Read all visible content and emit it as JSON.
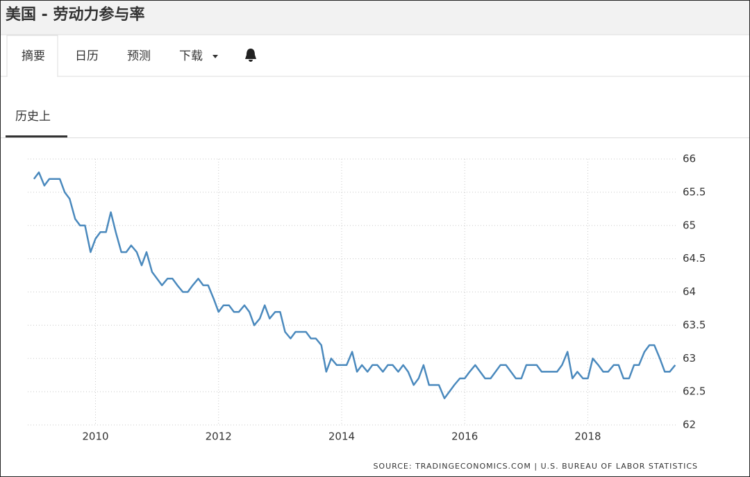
{
  "header": {
    "title": "美国 - 劳动力参与率"
  },
  "tabs": [
    "摘要",
    "日历",
    "预测",
    "下载"
  ],
  "subtab": "历史上",
  "chart_data": {
    "type": "line",
    "x": [
      2009,
      2009.08,
      2009.17,
      2009.25,
      2009.33,
      2009.42,
      2009.5,
      2009.58,
      2009.67,
      2009.75,
      2009.83,
      2009.92,
      2010,
      2010.08,
      2010.17,
      2010.25,
      2010.33,
      2010.42,
      2010.5,
      2010.58,
      2010.67,
      2010.75,
      2010.83,
      2010.92,
      2011,
      2011.08,
      2011.17,
      2011.25,
      2011.33,
      2011.42,
      2011.5,
      2011.58,
      2011.67,
      2011.75,
      2011.83,
      2011.92,
      2012,
      2012.08,
      2012.17,
      2012.25,
      2012.33,
      2012.42,
      2012.5,
      2012.58,
      2012.67,
      2012.75,
      2012.83,
      2012.92,
      2013,
      2013.08,
      2013.17,
      2013.25,
      2013.33,
      2013.42,
      2013.5,
      2013.58,
      2013.67,
      2013.75,
      2013.83,
      2013.92,
      2014,
      2014.08,
      2014.17,
      2014.25,
      2014.33,
      2014.42,
      2014.5,
      2014.58,
      2014.67,
      2014.75,
      2014.83,
      2014.92,
      2015,
      2015.08,
      2015.17,
      2015.25,
      2015.33,
      2015.42,
      2015.5,
      2015.58,
      2015.67,
      2015.75,
      2015.83,
      2015.92,
      2016,
      2016.08,
      2016.17,
      2016.25,
      2016.33,
      2016.42,
      2016.5,
      2016.58,
      2016.67,
      2016.75,
      2016.83,
      2016.92,
      2017,
      2017.08,
      2017.17,
      2017.25,
      2017.33,
      2017.42,
      2017.5,
      2017.58,
      2017.67,
      2017.75,
      2017.83,
      2017.92,
      2018,
      2018.08,
      2018.17,
      2018.25,
      2018.33,
      2018.42,
      2018.5,
      2018.58,
      2018.67,
      2018.75,
      2018.83,
      2018.92,
      2019,
      2019.08,
      2019.17,
      2019.25,
      2019.33,
      2019.42
    ],
    "series": [
      {
        "color": "#4a89bd",
        "values": [
          65.7,
          65.8,
          65.6,
          65.7,
          65.7,
          65.7,
          65.5,
          65.4,
          65.1,
          65.0,
          65.0,
          64.6,
          64.8,
          64.9,
          64.9,
          65.2,
          64.9,
          64.6,
          64.6,
          64.7,
          64.6,
          64.4,
          64.6,
          64.3,
          64.2,
          64.1,
          64.2,
          64.2,
          64.1,
          64.0,
          64.0,
          64.1,
          64.2,
          64.1,
          64.1,
          63.9,
          63.7,
          63.8,
          63.8,
          63.7,
          63.7,
          63.8,
          63.7,
          63.5,
          63.6,
          63.8,
          63.6,
          63.7,
          63.7,
          63.4,
          63.3,
          63.4,
          63.4,
          63.4,
          63.3,
          63.3,
          63.2,
          62.8,
          63.0,
          62.9,
          62.9,
          62.9,
          63.1,
          62.8,
          62.9,
          62.8,
          62.9,
          62.9,
          62.8,
          62.9,
          62.9,
          62.8,
          62.9,
          62.8,
          62.6,
          62.7,
          62.9,
          62.6,
          62.6,
          62.6,
          62.4,
          62.5,
          62.6,
          62.7,
          62.7,
          62.8,
          62.9,
          62.8,
          62.7,
          62.7,
          62.8,
          62.9,
          62.9,
          62.8,
          62.7,
          62.7,
          62.9,
          62.9,
          62.9,
          62.8,
          62.8,
          62.8,
          62.8,
          62.9,
          63.1,
          62.7,
          62.8,
          62.7,
          62.7,
          63.0,
          62.9,
          62.8,
          62.8,
          62.9,
          62.9,
          62.7,
          62.7,
          62.9,
          62.9,
          63.1,
          63.2,
          63.2,
          63.0,
          62.8,
          62.8,
          62.9
        ]
      }
    ],
    "xlim": [
      2008.9,
      2019.45
    ],
    "xticks": [
      2010,
      2012,
      2014,
      2016,
      2018
    ],
    "ylim": [
      62,
      66
    ],
    "yticks": [
      62,
      62.5,
      63,
      63.5,
      64,
      64.5,
      65,
      65.5,
      66
    ],
    "grid": true,
    "source": "SOURCE: TRADINGECONOMICS.COM | U.S. BUREAU OF LABOR STATISTICS"
  }
}
